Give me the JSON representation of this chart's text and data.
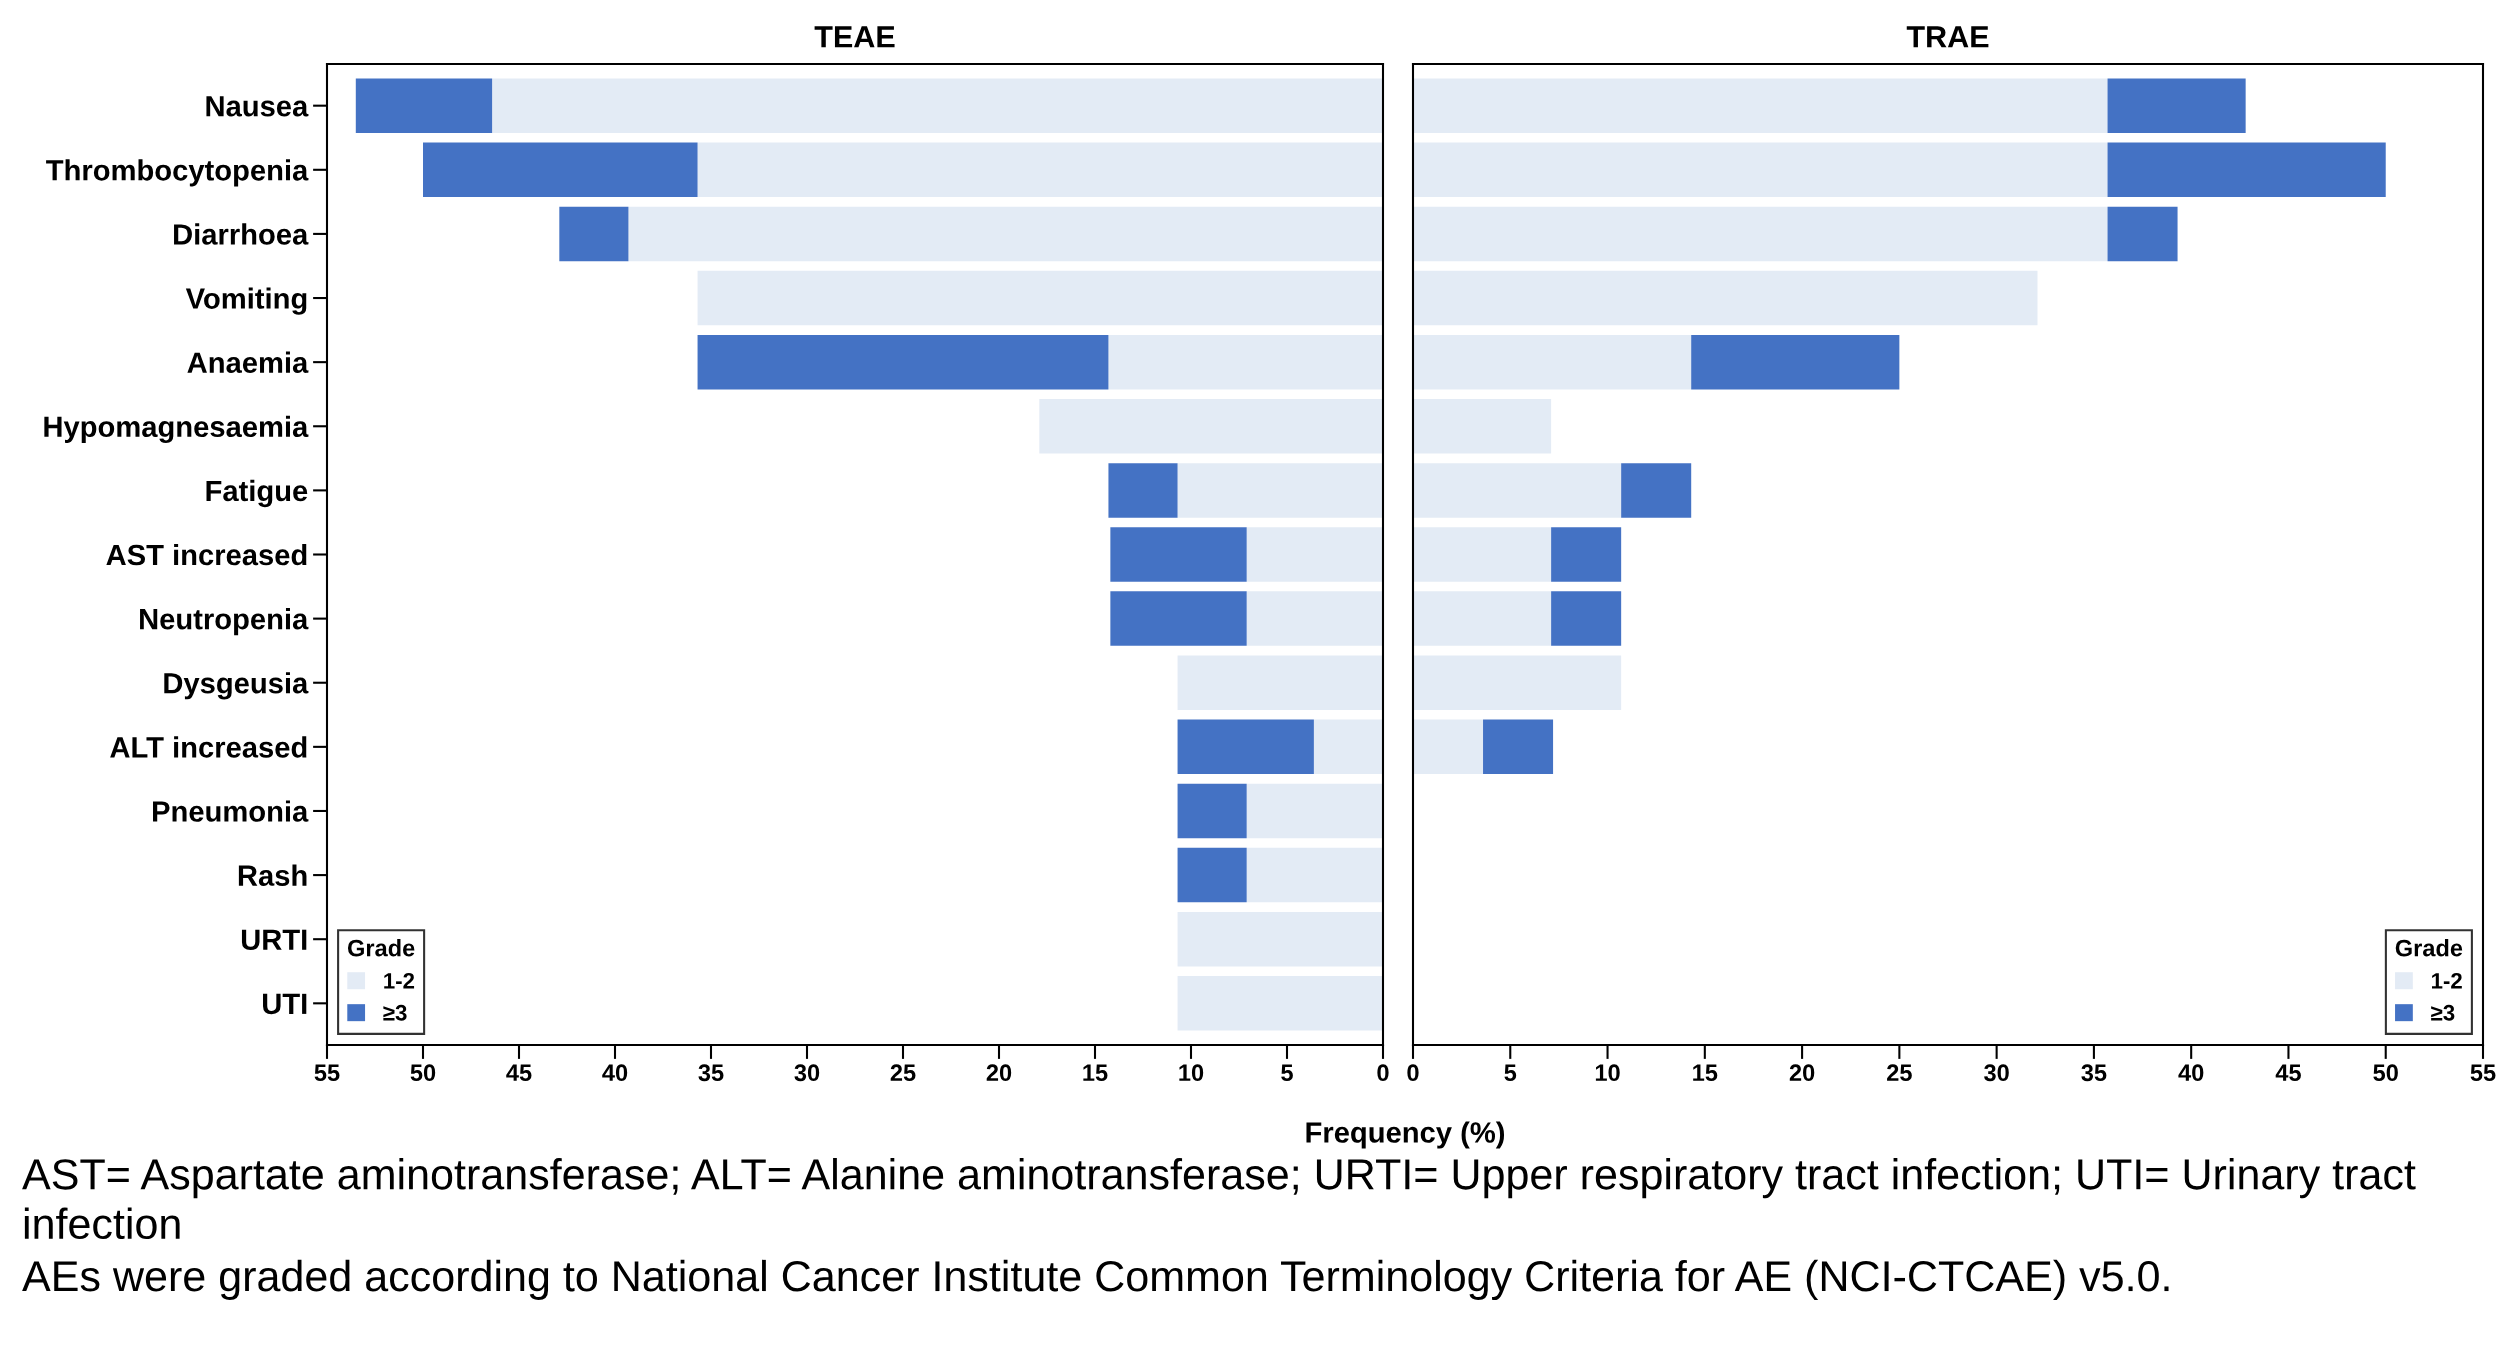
{
  "chart_data": [
    {
      "type": "bar",
      "title": "TEAE",
      "orientation": "horizontal",
      "stacked": true,
      "xlabel": "Frequency (%)",
      "legend_title": "Grade",
      "legend": "bottom left",
      "grid": false,
      "categories": [
        "Nausea",
        "Thrombocytopenia",
        "Diarrhoea",
        "Vomiting",
        "Anaemia",
        "Hypomagnesaemia",
        "Fatigue",
        "AST increased",
        "Neutropenia",
        "Dysgeusia",
        "ALT increased",
        "Pneumonia",
        "Rash",
        "URTI",
        "UTI"
      ],
      "series": [
        {
          "name": "1-2",
          "color": "#e3ebf5",
          "values": [
            46.4,
            35.7,
            39.3,
            35.7,
            14.3,
            17.9,
            10.7,
            7.1,
            7.1,
            10.7,
            3.6,
            7.1,
            7.1,
            10.7,
            10.7
          ]
        },
        {
          "name": "≥3",
          "color": "#4472c4",
          "values": [
            7.1,
            14.3,
            3.6,
            null,
            21.4,
            null,
            3.6,
            7.1,
            7.1,
            null,
            7.1,
            3.6,
            3.6,
            null,
            null
          ]
        }
      ],
      "xlim": [
        55,
        0
      ],
      "xticks": [
        55,
        50,
        45,
        40,
        35,
        30,
        25,
        20,
        15,
        10,
        5,
        0
      ],
      "annotations": [
        "AST= Aspartate aminotransferase; ALT= Alanine aminotransferase; URTI= Upper respiratory tract infection; UTI= Urinary tract infection",
        "AEs were graded according to National Cancer Institute Common Terminology Criteria for AE (NCI-CTCAE) v5.0."
      ]
    },
    {
      "type": "bar",
      "title": "TRAE",
      "orientation": "horizontal",
      "stacked": true,
      "legend_title": "Grade",
      "legend": "bottom right",
      "grid": false,
      "tick_labels": "x",
      "categories": [
        null,
        null,
        null,
        null,
        null,
        null,
        null,
        null,
        null,
        null,
        null,
        null,
        null,
        null,
        null
      ],
      "series": [
        {
          "name": "1-2",
          "color": "#e3ebf5",
          "values": [
            35.7,
            35.7,
            35.7,
            32.1,
            14.3,
            7.1,
            10.7,
            7.1,
            7.1,
            10.7,
            3.6,
            null,
            null,
            null,
            null
          ]
        },
        {
          "name": "≥3",
          "color": "#4472c4",
          "values": [
            7.1,
            14.3,
            3.6,
            null,
            10.7,
            null,
            3.6,
            3.6,
            3.6,
            null,
            3.6,
            null,
            null,
            null,
            null
          ]
        }
      ],
      "xlim": [
        0,
        55
      ],
      "xticks": [
        0,
        5,
        10,
        15,
        20,
        25,
        30,
        35,
        40,
        45,
        50,
        55
      ]
    }
  ]
}
